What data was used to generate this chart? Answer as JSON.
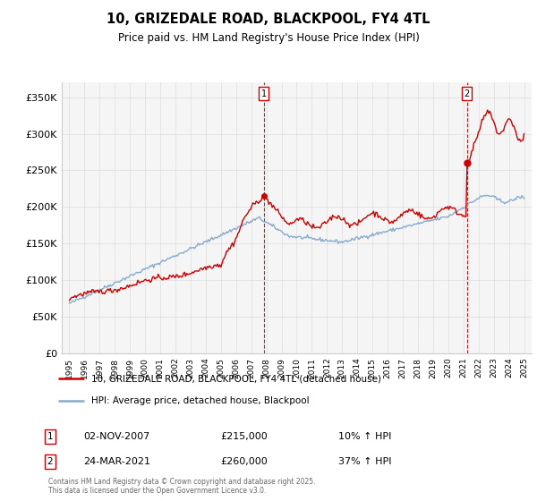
{
  "title": "10, GRIZEDALE ROAD, BLACKPOOL, FY4 4TL",
  "subtitle": "Price paid vs. HM Land Registry's House Price Index (HPI)",
  "legend_entries": [
    "10, GRIZEDALE ROAD, BLACKPOOL, FY4 4TL (detached house)",
    "HPI: Average price, detached house, Blackpool"
  ],
  "legend_colors": [
    "#cc0000",
    "#88aacc"
  ],
  "annotation1": {
    "label": "1",
    "date": "02-NOV-2007",
    "price": "£215,000",
    "hpi": "10% ↑ HPI",
    "x_year": 2007.83,
    "y_val": 215000
  },
  "annotation2": {
    "label": "2",
    "date": "24-MAR-2021",
    "price": "£260,000",
    "hpi": "37% ↑ HPI",
    "x_year": 2021.22,
    "y_val": 260000
  },
  "footer": "Contains HM Land Registry data © Crown copyright and database right 2025.\nThis data is licensed under the Open Government Licence v3.0.",
  "ylim": [
    0,
    370000
  ],
  "yticks": [
    0,
    50000,
    100000,
    150000,
    200000,
    250000,
    300000,
    350000
  ],
  "ytick_labels": [
    "£0",
    "£50K",
    "£100K",
    "£150K",
    "£200K",
    "£250K",
    "£300K",
    "£350K"
  ],
  "xlim_start": 1994.5,
  "xlim_end": 2025.5,
  "background_color": "#f5f5f5",
  "grid_color": "#dddddd",
  "dashed_line_color": "#cc0000",
  "price_line_color": "#cc0000",
  "hpi_line_color": "#88aacc"
}
